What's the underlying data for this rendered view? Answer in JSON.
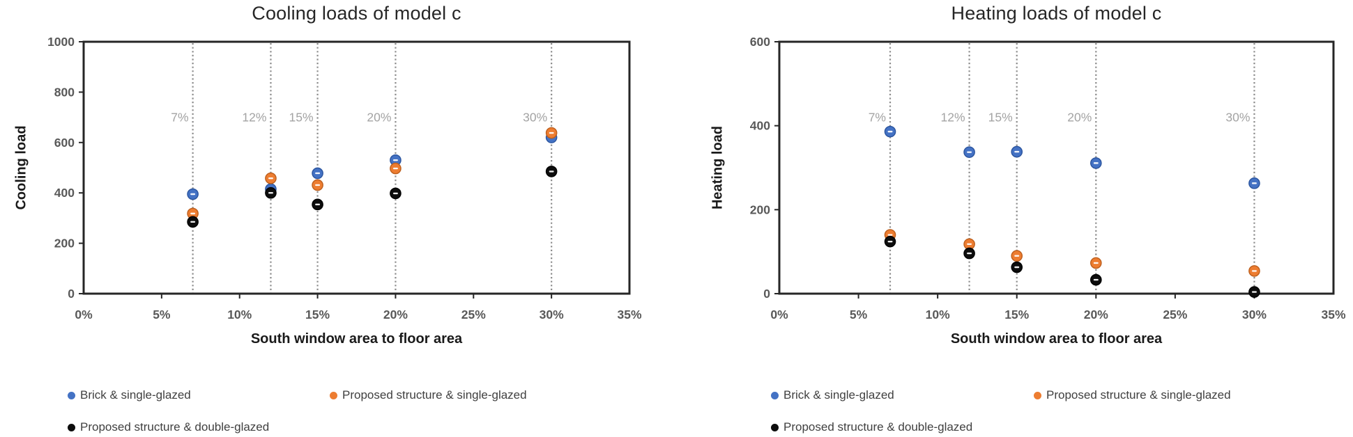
{
  "chart_data": [
    {
      "type": "scatter",
      "title": "Cooling loads of model c",
      "xlabel": "South window area to floor area",
      "ylabel": "Cooling load",
      "xlim_percent": [
        0,
        35
      ],
      "ylim": [
        0,
        1000
      ],
      "x_tick_labels": [
        "0%",
        "5%",
        "10%",
        "15%",
        "20%",
        "25%",
        "30%",
        "35%"
      ],
      "x_tick_percents": [
        0,
        5,
        10,
        15,
        20,
        25,
        30,
        35
      ],
      "y_tick_labels": [
        "0",
        "200",
        "400",
        "600",
        "800",
        "1000"
      ],
      "y_tick_values": [
        0,
        200,
        400,
        600,
        800,
        1000
      ],
      "grid": "vertical dotted lines at data x positions only",
      "legend_position": "below-left, two rows",
      "x_percent": [
        7,
        12,
        15,
        20,
        30
      ],
      "vline_labels": [
        "7%",
        "12%",
        "15%",
        "20%",
        "30%"
      ],
      "annotation_value_y": 700,
      "annotation_color": "#a3a3a3",
      "vline_color": "#8c8c8c",
      "series": [
        {
          "name": "Brick & single-glazed",
          "color": "#4472C4",
          "edge": "#2a549e",
          "values": [
            395,
            415,
            478,
            530,
            620
          ]
        },
        {
          "name": "Proposed structure & single-glazed",
          "color": "#ED7D31",
          "edge": "#bc5e1c",
          "values": [
            318,
            458,
            431,
            497,
            638
          ]
        },
        {
          "name": "Proposed structure & double-glazed",
          "color": "#0d0d0d",
          "edge": "#000000",
          "values": [
            285,
            400,
            354,
            398,
            485
          ]
        }
      ]
    },
    {
      "type": "scatter",
      "title": "Heating loads of model c",
      "xlabel": "South window area to floor area",
      "ylabel": "Heating load",
      "xlim_percent": [
        0,
        35
      ],
      "ylim": [
        0,
        600
      ],
      "x_tick_labels": [
        "0%",
        "5%",
        "10%",
        "15%",
        "20%",
        "25%",
        "30%",
        "35%"
      ],
      "x_tick_percents": [
        0,
        5,
        10,
        15,
        20,
        25,
        30,
        35
      ],
      "y_tick_labels": [
        "0",
        "200",
        "400",
        "600"
      ],
      "y_tick_values": [
        0,
        200,
        400,
        600
      ],
      "grid": "vertical dotted lines at data x positions only",
      "legend_position": "below-left, two rows",
      "x_percent": [
        7,
        12,
        15,
        20,
        30
      ],
      "vline_labels": [
        "7%",
        "12%",
        "15%",
        "20%",
        "30%"
      ],
      "annotation_value_y": 420,
      "annotation_color": "#a3a3a3",
      "vline_color": "#8c8c8c",
      "series": [
        {
          "name": "Brick & single-glazed",
          "color": "#4472C4",
          "edge": "#2a549e",
          "values": [
            386,
            337,
            338,
            311,
            263
          ]
        },
        {
          "name": "Proposed structure & single-glazed",
          "color": "#ED7D31",
          "edge": "#bc5e1c",
          "values": [
            140,
            118,
            90,
            73,
            54
          ]
        },
        {
          "name": "Proposed structure & double-glazed",
          "color": "#0d0d0d",
          "edge": "#000000",
          "values": [
            124,
            96,
            63,
            33,
            4
          ]
        }
      ]
    }
  ],
  "style": {
    "axis_box_color": "#262626",
    "tick_label_color": "#595959",
    "background": "#ffffff"
  }
}
